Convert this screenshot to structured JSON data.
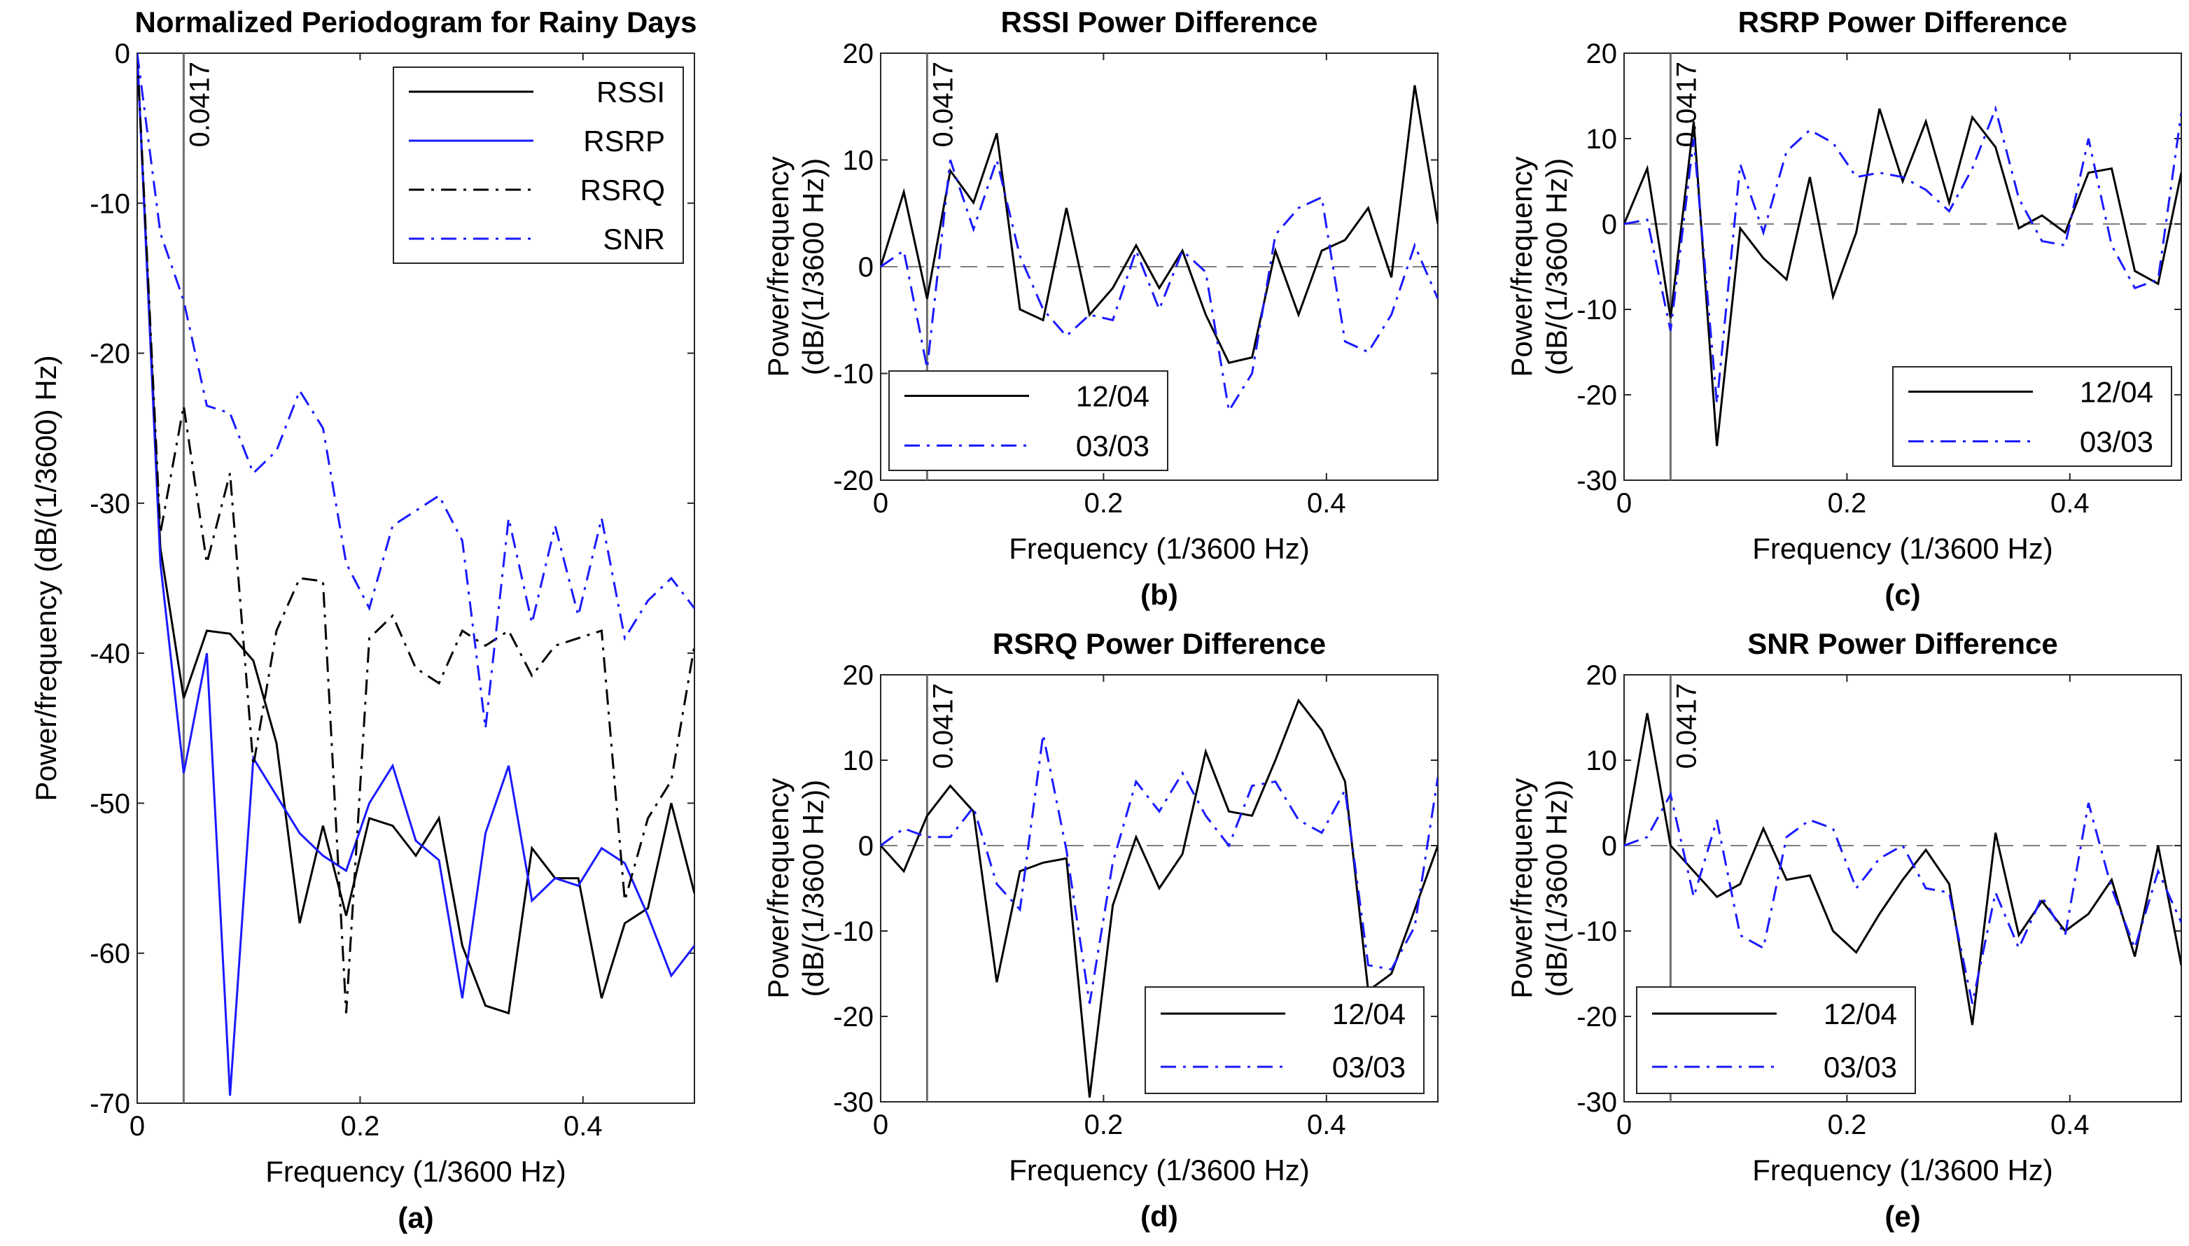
{
  "chart_data": [
    {
      "id": "a",
      "type": "line",
      "title": "Normalized Periodogram for Rainy Days",
      "xlabel": "Frequency (1/3600 Hz)",
      "ylabel": "Power/frequency (dB/(1/3600) Hz)",
      "panel_label": "(a)",
      "xlim": [
        0,
        0.5
      ],
      "ylim": [
        -70,
        0
      ],
      "xticks": [
        0,
        0.2,
        0.4
      ],
      "yticks": [
        -70,
        -60,
        -50,
        -40,
        -30,
        -20,
        -10,
        0
      ],
      "xtick_labels": [
        "0",
        "0.2",
        "0.4"
      ],
      "ytick_labels": [
        "-70",
        "-60",
        "-50",
        "-40",
        "-30",
        "-20",
        "-10",
        "0"
      ],
      "vline": {
        "x": 0.0417,
        "label": "0.0417"
      },
      "legend_position": "top-right",
      "x": [
        0,
        0.0208,
        0.0417,
        0.0625,
        0.0833,
        0.1042,
        0.125,
        0.1458,
        0.1667,
        0.1875,
        0.2083,
        0.2292,
        0.25,
        0.2708,
        0.2917,
        0.3125,
        0.3333,
        0.3542,
        0.375,
        0.3958,
        0.4167,
        0.4375,
        0.4583,
        0.4792,
        0.5
      ],
      "series": [
        {
          "name": "RSSI",
          "color": "#000000",
          "dash": "solid",
          "values": [
            0,
            -33,
            -43,
            -38.5,
            -38.7,
            -40.5,
            -46,
            -58,
            -51.5,
            -57.5,
            -51,
            -51.5,
            -53.5,
            -51,
            -59.5,
            -63.5,
            -64,
            -53,
            -55,
            -55,
            -63,
            -58,
            -57,
            -50,
            -56
          ]
        },
        {
          "name": "RSRP",
          "color": "#1a1aff",
          "dash": "solid",
          "values": [
            0,
            -34,
            -48,
            -40,
            -69.5,
            -47,
            -49.5,
            -52,
            -53.5,
            -54.5,
            -50,
            -47.5,
            -52.5,
            -53.8,
            -63,
            -52,
            -47.5,
            -56.5,
            -55,
            -55.5,
            -53,
            -54,
            -57.5,
            -61.5,
            -59.5
          ]
        },
        {
          "name": "RSRQ",
          "color": "#000000",
          "dash": "dashdot",
          "values": [
            0,
            -32,
            -23.5,
            -34,
            -28,
            -47.5,
            -38.5,
            -35,
            -35.2,
            -64,
            -39,
            -37.5,
            -41,
            -42,
            -38.5,
            -39.5,
            -38.5,
            -41.5,
            -39.5,
            -39,
            -38.5,
            -56.5,
            -51,
            -48.5,
            -39.5
          ]
        },
        {
          "name": "SNR",
          "color": "#1a1aff",
          "dash": "dashdot",
          "values": [
            0,
            -12,
            -16.5,
            -23.5,
            -24,
            -28,
            -26.5,
            -22.5,
            -25,
            -34,
            -37,
            -31.5,
            -30.5,
            -29.5,
            -32.5,
            -45,
            -31,
            -38,
            -31.5,
            -37.5,
            -31,
            -39,
            -36.5,
            -35,
            -37
          ]
        }
      ]
    },
    {
      "id": "b",
      "type": "line",
      "title": "RSSI Power Difference",
      "xlabel": "Frequency (1/3600 Hz)",
      "ylabel_lines": [
        "Power/frequency",
        "(dB/(1/3600 Hz))"
      ],
      "panel_label": "(b)",
      "xlim": [
        0,
        0.5
      ],
      "ylim": [
        -20,
        20
      ],
      "xticks": [
        0,
        0.2,
        0.4
      ],
      "yticks": [
        -20,
        -10,
        0,
        10,
        20
      ],
      "xtick_labels": [
        "0",
        "0.2",
        "0.4"
      ],
      "ytick_labels": [
        "-20",
        "-10",
        "0",
        "10",
        "20"
      ],
      "vline": {
        "x": 0.0417,
        "label": "0.0417"
      },
      "zero_line": true,
      "legend_position": "bottom-left",
      "x": [
        0,
        0.0208,
        0.0417,
        0.0625,
        0.0833,
        0.1042,
        0.125,
        0.1458,
        0.1667,
        0.1875,
        0.2083,
        0.2292,
        0.25,
        0.2708,
        0.2917,
        0.3125,
        0.3333,
        0.3542,
        0.375,
        0.3958,
        0.4167,
        0.4375,
        0.4583,
        0.4792,
        0.5
      ],
      "series": [
        {
          "name": "12/04",
          "color": "#000000",
          "dash": "solid",
          "values": [
            0,
            7,
            -3,
            9,
            6,
            12.5,
            -4,
            -5,
            5.5,
            -4.5,
            -2,
            2,
            -2,
            1.5,
            -4.5,
            -9,
            -8.5,
            1.5,
            -4.5,
            1.5,
            2.5,
            5.5,
            -1,
            17,
            4
          ]
        },
        {
          "name": "03/03",
          "color": "#1a1aff",
          "dash": "dashdot",
          "values": [
            0,
            1.5,
            -9.5,
            10,
            3.5,
            10,
            1,
            -4,
            -6.5,
            -4.5,
            -5,
            1.5,
            -4,
            1.5,
            -0.5,
            -13.5,
            -10,
            3,
            5.5,
            6.5,
            -7,
            -8,
            -4.5,
            2,
            -3
          ]
        }
      ]
    },
    {
      "id": "c",
      "type": "line",
      "title": "RSRP Power Difference",
      "xlabel": "Frequency (1/3600 Hz)",
      "ylabel_lines": [
        "Power/frequency",
        "(dB/(1/3600 Hz))"
      ],
      "panel_label": "(c)",
      "xlim": [
        0,
        0.5
      ],
      "ylim": [
        -30,
        20
      ],
      "xticks": [
        0,
        0.2,
        0.4
      ],
      "yticks": [
        -30,
        -20,
        -10,
        0,
        10,
        20
      ],
      "xtick_labels": [
        "0",
        "0.2",
        "0.4"
      ],
      "ytick_labels": [
        "-30",
        "-20",
        "-10",
        "0",
        "10",
        "20"
      ],
      "vline": {
        "x": 0.0417,
        "label": "0.0417"
      },
      "zero_line": true,
      "legend_position": "bottom-right",
      "x": [
        0,
        0.0208,
        0.0417,
        0.0625,
        0.0833,
        0.1042,
        0.125,
        0.1458,
        0.1667,
        0.1875,
        0.2083,
        0.2292,
        0.25,
        0.2708,
        0.2917,
        0.3125,
        0.3333,
        0.3542,
        0.375,
        0.3958,
        0.4167,
        0.4375,
        0.4583,
        0.4792,
        0.5
      ],
      "series": [
        {
          "name": "12/04",
          "color": "#000000",
          "dash": "solid",
          "values": [
            0,
            6.5,
            -11,
            12,
            -26,
            -0.5,
            -4,
            -6.5,
            5.5,
            -8.5,
            -1,
            13.5,
            5,
            12,
            2.5,
            12.5,
            9,
            -0.5,
            1,
            -1,
            6,
            6.5,
            -5.5,
            -7,
            6
          ]
        },
        {
          "name": "03/03",
          "color": "#1a1aff",
          "dash": "dashdot",
          "values": [
            0,
            0.5,
            -12.5,
            10,
            -21,
            7,
            -1,
            8.5,
            11,
            9.5,
            5.5,
            6,
            5.5,
            4,
            1.5,
            6.5,
            13.5,
            3,
            -2,
            -2.5,
            10,
            -2.5,
            -7.5,
            -6.5,
            13
          ]
        }
      ]
    },
    {
      "id": "d",
      "type": "line",
      "title": "RSRQ Power Difference",
      "xlabel": "Frequency (1/3600 Hz)",
      "ylabel_lines": [
        "Power/frequency",
        "(dB/(1/3600 Hz))"
      ],
      "panel_label": "(d)",
      "xlim": [
        0,
        0.5
      ],
      "ylim": [
        -30,
        20
      ],
      "xticks": [
        0,
        0.2,
        0.4
      ],
      "yticks": [
        -30,
        -20,
        -10,
        0,
        10,
        20
      ],
      "xtick_labels": [
        "0",
        "0.2",
        "0.4"
      ],
      "ytick_labels": [
        "-30",
        "-20",
        "-10",
        "0",
        "10",
        "20"
      ],
      "vline": {
        "x": 0.0417,
        "label": "0.0417"
      },
      "zero_line": true,
      "legend_position": "bottom-right",
      "x": [
        0,
        0.0208,
        0.0417,
        0.0625,
        0.0833,
        0.1042,
        0.125,
        0.1458,
        0.1667,
        0.1875,
        0.2083,
        0.2292,
        0.25,
        0.2708,
        0.2917,
        0.3125,
        0.3333,
        0.3542,
        0.375,
        0.3958,
        0.4167,
        0.4375,
        0.4583,
        0.4792,
        0.5
      ],
      "series": [
        {
          "name": "12/04",
          "color": "#000000",
          "dash": "solid",
          "values": [
            0,
            -3,
            3.5,
            7,
            4,
            -16,
            -3,
            -2,
            -1.5,
            -29.5,
            -7,
            1,
            -5,
            -1,
            11,
            4,
            3.5,
            10,
            17,
            13.5,
            7.5,
            -17,
            -15,
            -7.5,
            0
          ]
        },
        {
          "name": "03/03",
          "color": "#1a1aff",
          "dash": "dashdot",
          "values": [
            0,
            2,
            1,
            1,
            4.5,
            -4.5,
            -7.5,
            13,
            -0.5,
            -18.5,
            -2,
            7.5,
            4,
            8.5,
            3.5,
            0,
            7,
            7.5,
            3,
            1.5,
            6.5,
            -14,
            -14.5,
            -9.5,
            8
          ]
        }
      ]
    },
    {
      "id": "e",
      "type": "line",
      "title": "SNR Power Difference",
      "xlabel": "Frequency (1/3600 Hz)",
      "ylabel_lines": [
        "Power/frequency",
        "(dB/(1/3600 Hz))"
      ],
      "panel_label": "(e)",
      "xlim": [
        0,
        0.5
      ],
      "ylim": [
        -30,
        20
      ],
      "xticks": [
        0,
        0.2,
        0.4
      ],
      "yticks": [
        -30,
        -20,
        -10,
        0,
        10,
        20
      ],
      "xtick_labels": [
        "0",
        "0.2",
        "0.4"
      ],
      "ytick_labels": [
        "-30",
        "-20",
        "-10",
        "0",
        "10",
        "20"
      ],
      "vline": {
        "x": 0.0417,
        "label": "0.0417"
      },
      "zero_line": true,
      "legend_position": "bottom-left",
      "x": [
        0,
        0.0208,
        0.0417,
        0.0625,
        0.0833,
        0.1042,
        0.125,
        0.1458,
        0.1667,
        0.1875,
        0.2083,
        0.2292,
        0.25,
        0.2708,
        0.2917,
        0.3125,
        0.3333,
        0.3542,
        0.375,
        0.3958,
        0.4167,
        0.4375,
        0.4583,
        0.4792,
        0.5
      ],
      "series": [
        {
          "name": "12/04",
          "color": "#000000",
          "dash": "solid",
          "values": [
            0,
            15.5,
            0,
            -3,
            -6,
            -4.5,
            2,
            -4,
            -3.5,
            -10,
            -12.5,
            -8,
            -4,
            -0.5,
            -4.5,
            -21,
            1.5,
            -10.5,
            -6.5,
            -10,
            -8,
            -4,
            -13,
            0,
            -14
          ]
        },
        {
          "name": "03/03",
          "color": "#1a1aff",
          "dash": "dashdot",
          "values": [
            0,
            1,
            6,
            -6,
            3,
            -10.5,
            -12,
            1,
            3,
            2,
            -5,
            -1.5,
            0,
            -5,
            -5.5,
            -18.5,
            -5.5,
            -12,
            -6,
            -10.5,
            5,
            -5,
            -12,
            -3,
            -9
          ]
        }
      ]
    }
  ]
}
